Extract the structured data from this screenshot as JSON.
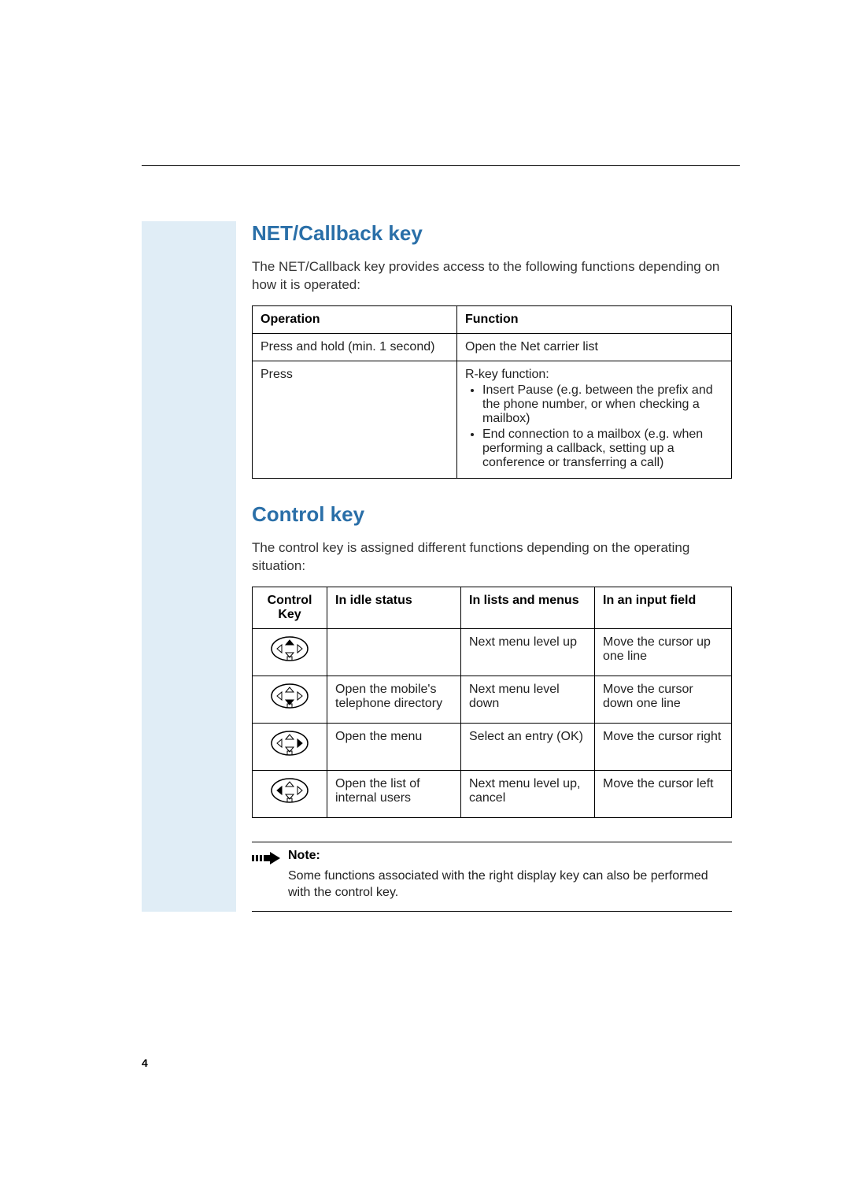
{
  "section1": {
    "heading": "NET/Callback key",
    "intro": "The NET/Callback key provides access to the following functions depending on how it is operated:",
    "table": {
      "headers": [
        "Operation",
        "Function"
      ],
      "rows": [
        {
          "op": "Press and hold (min. 1 second)",
          "func_text": "Open the Net carrier list"
        },
        {
          "op": "Press",
          "func_lead": "R-key function:",
          "func_items": [
            "Insert Pause (e.g. between the prefix and the phone number, or when checking a mailbox)",
            "End connection to a mailbox (e.g. when performing a callback, setting up a conference or transferring a call)"
          ]
        }
      ]
    }
  },
  "section2": {
    "heading": "Control key",
    "intro": "The control key is assigned different functions depending on the operating situation:",
    "table": {
      "headers": [
        "Control Key",
        "In idle status",
        "In lists and menus",
        "In an input field"
      ],
      "rows": [
        {
          "dir": "up",
          "idle": "",
          "lists": "Next menu level up",
          "input": "Move the cursor up one line"
        },
        {
          "dir": "down",
          "idle": "Open the mobile's telephone directory",
          "lists": "Next menu level down",
          "input": "Move the cursor down one line"
        },
        {
          "dir": "right",
          "idle": "Open the menu",
          "lists": "Select an entry (OK)",
          "input": "Move the cursor right"
        },
        {
          "dir": "left",
          "idle": "Open the list of internal users",
          "lists": "Next menu level up, cancel",
          "input": "Move the cursor left"
        }
      ]
    }
  },
  "note": {
    "label": "Note:",
    "text": "Some functions associated with the right display key can also be performed with the control key."
  },
  "page_number": "4",
  "colors": {
    "heading": "#2a6fa8",
    "strip": "#e0edf6",
    "border": "#000000",
    "text": "#222222"
  }
}
